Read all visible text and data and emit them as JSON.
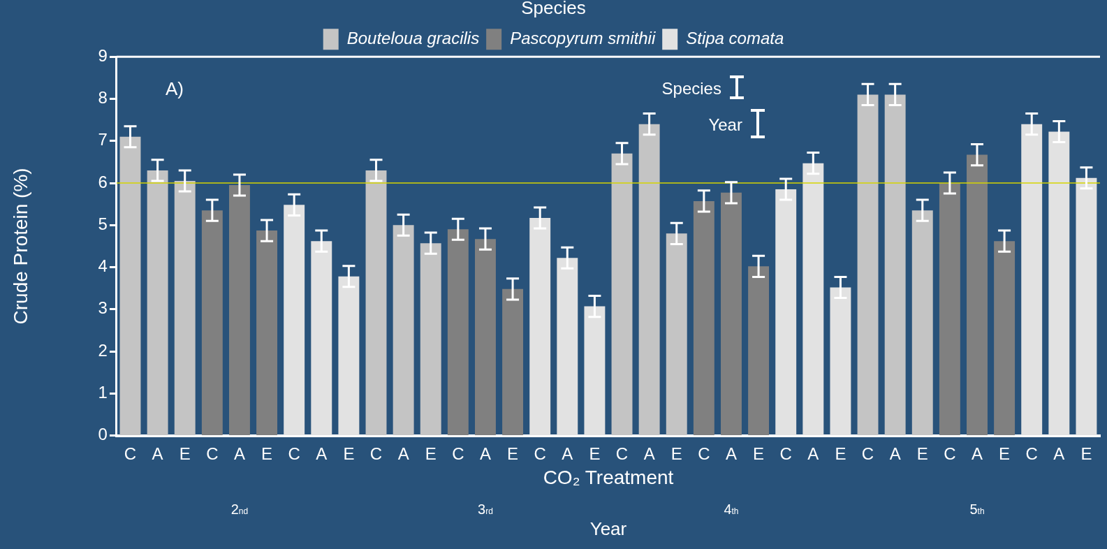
{
  "chart_data": {
    "type": "bar",
    "categories": [
      "C",
      "A",
      "E",
      "C",
      "A",
      "E",
      "C",
      "A",
      "E",
      "C",
      "A",
      "E",
      "C",
      "A",
      "E",
      "C",
      "A",
      "E",
      "C",
      "A",
      "E",
      "C",
      "A",
      "E",
      "C",
      "A",
      "E",
      "C",
      "A",
      "E",
      "C",
      "A",
      "E",
      "C",
      "A",
      "E"
    ],
    "xlabel": "CO₂ Treatment",
    "ylabel": "Crude Protein (%)",
    "legend_title": "Species",
    "ylim": [
      0,
      9
    ],
    "yticks": [
      0,
      1,
      2,
      3,
      4,
      5,
      6,
      7,
      8,
      9
    ],
    "series": [
      {
        "name": "Bouteloua gracilis",
        "color": "#c4c4c4",
        "values": [
          7.1,
          6.3,
          6.05,
          null,
          null,
          null,
          null,
          null,
          null,
          6.3,
          5.0,
          4.57,
          null,
          null,
          null,
          null,
          null,
          null,
          6.7,
          7.4,
          4.8,
          null,
          null,
          null,
          null,
          null,
          null,
          8.1,
          8.1,
          5.35,
          null,
          null,
          null,
          null,
          null,
          null
        ],
        "errors": [
          0.25,
          0.25,
          0.25,
          null,
          null,
          null,
          null,
          null,
          null,
          0.25,
          0.25,
          0.25,
          null,
          null,
          null,
          null,
          null,
          null,
          0.25,
          0.25,
          0.25,
          null,
          null,
          null,
          null,
          null,
          null,
          0.25,
          0.25,
          0.25,
          null,
          null,
          null,
          null,
          null,
          null
        ]
      },
      {
        "name": "Pascopyrum smithii",
        "color": "#808080",
        "values": [
          null,
          null,
          null,
          5.35,
          5.95,
          4.87,
          null,
          null,
          null,
          null,
          null,
          null,
          4.9,
          4.67,
          3.48,
          null,
          null,
          null,
          null,
          null,
          null,
          5.57,
          5.77,
          4.02,
          null,
          null,
          null,
          null,
          null,
          null,
          6.0,
          6.67,
          4.62,
          null,
          null,
          null
        ],
        "errors": [
          null,
          null,
          null,
          0.25,
          0.25,
          0.25,
          null,
          null,
          null,
          null,
          null,
          null,
          0.25,
          0.25,
          0.25,
          null,
          null,
          null,
          null,
          null,
          null,
          0.25,
          0.25,
          0.25,
          null,
          null,
          null,
          null,
          null,
          null,
          0.25,
          0.25,
          0.25,
          null,
          null,
          null
        ]
      },
      {
        "name": "Stipa comata",
        "color": "#e2e2e2",
        "values": [
          null,
          null,
          null,
          null,
          null,
          null,
          5.48,
          4.62,
          3.78,
          null,
          null,
          null,
          null,
          null,
          null,
          5.17,
          4.22,
          3.07,
          null,
          null,
          null,
          null,
          null,
          null,
          5.85,
          6.47,
          3.52,
          null,
          null,
          null,
          null,
          null,
          null,
          7.4,
          7.22,
          6.12
        ],
        "errors": [
          null,
          null,
          null,
          null,
          null,
          null,
          0.25,
          0.25,
          0.25,
          null,
          null,
          null,
          null,
          null,
          null,
          0.25,
          0.25,
          0.25,
          null,
          null,
          null,
          null,
          null,
          null,
          0.25,
          0.25,
          0.25,
          null,
          null,
          null,
          null,
          null,
          null,
          0.25,
          0.25,
          0.25
        ]
      }
    ],
    "ref_lines": [
      {
        "axis": "y",
        "value": 6,
        "color": "#d4d400"
      }
    ],
    "annotations": [
      "A)",
      "2$^{nd}$",
      "3$^{rd}$",
      "4$^{th}$",
      "5$^{th}$",
      "Year",
      "Species",
      "Year"
    ],
    "legend": "top",
    "grid": false
  }
}
